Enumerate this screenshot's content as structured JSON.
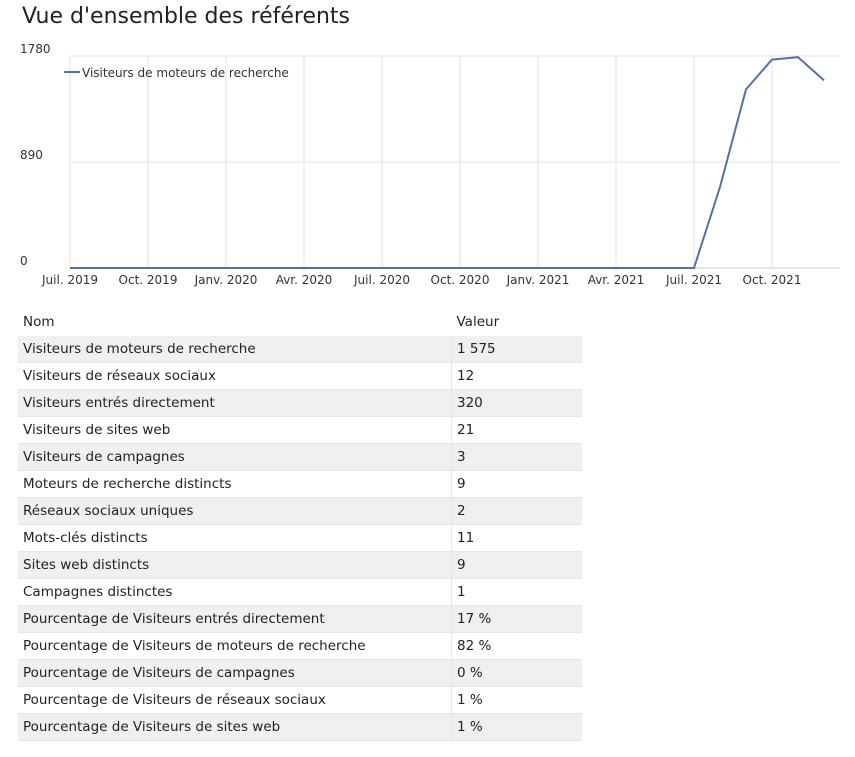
{
  "title": "Vue d'ensemble des référents",
  "chart_data": {
    "type": "line",
    "categories": [
      "Juil. 2019",
      null,
      null,
      "Oct. 2019",
      null,
      null,
      "Janv. 2020",
      null,
      null,
      "Avr. 2020",
      null,
      null,
      "Juil. 2020",
      null,
      null,
      "Oct. 2020",
      null,
      null,
      "Janv. 2021",
      null,
      null,
      "Avr. 2021",
      null,
      null,
      "Juil. 2021",
      null,
      null,
      "Oct. 2021",
      null,
      null
    ],
    "series": [
      {
        "name": "Visiteurs de moteurs de recherche",
        "color": "#5470a8",
        "values": [
          0,
          0,
          0,
          0,
          0,
          0,
          0,
          0,
          0,
          0,
          0,
          0,
          0,
          0,
          0,
          0,
          0,
          0,
          0,
          0,
          0,
          0,
          0,
          0,
          0,
          680,
          1500,
          1750,
          1770,
          1575
        ]
      }
    ],
    "ylim": [
      0,
      1780
    ],
    "yticks": [
      0,
      890,
      1780
    ],
    "grid": true,
    "legend": "top-left"
  },
  "table": {
    "headers": [
      "Nom",
      "Valeur"
    ],
    "rows": [
      [
        "Visiteurs de moteurs de recherche",
        "1 575"
      ],
      [
        "Visiteurs de réseaux sociaux",
        "12"
      ],
      [
        "Visiteurs entrés directement",
        "320"
      ],
      [
        "Visiteurs de sites web",
        "21"
      ],
      [
        "Visiteurs de campagnes",
        "3"
      ],
      [
        "Moteurs de recherche distincts",
        "9"
      ],
      [
        "Réseaux sociaux uniques",
        "2"
      ],
      [
        "Mots-clés distincts",
        "11"
      ],
      [
        "Sites web distincts",
        "9"
      ],
      [
        "Campagnes distinctes",
        "1"
      ],
      [
        "Pourcentage de Visiteurs entrés directement",
        "17 %"
      ],
      [
        "Pourcentage de Visiteurs de moteurs de recherche",
        "82 %"
      ],
      [
        "Pourcentage de Visiteurs de campagnes",
        "0 %"
      ],
      [
        "Pourcentage de Visiteurs de réseaux sociaux",
        "1 %"
      ],
      [
        "Pourcentage de Visiteurs de sites web",
        "1 %"
      ]
    ]
  }
}
